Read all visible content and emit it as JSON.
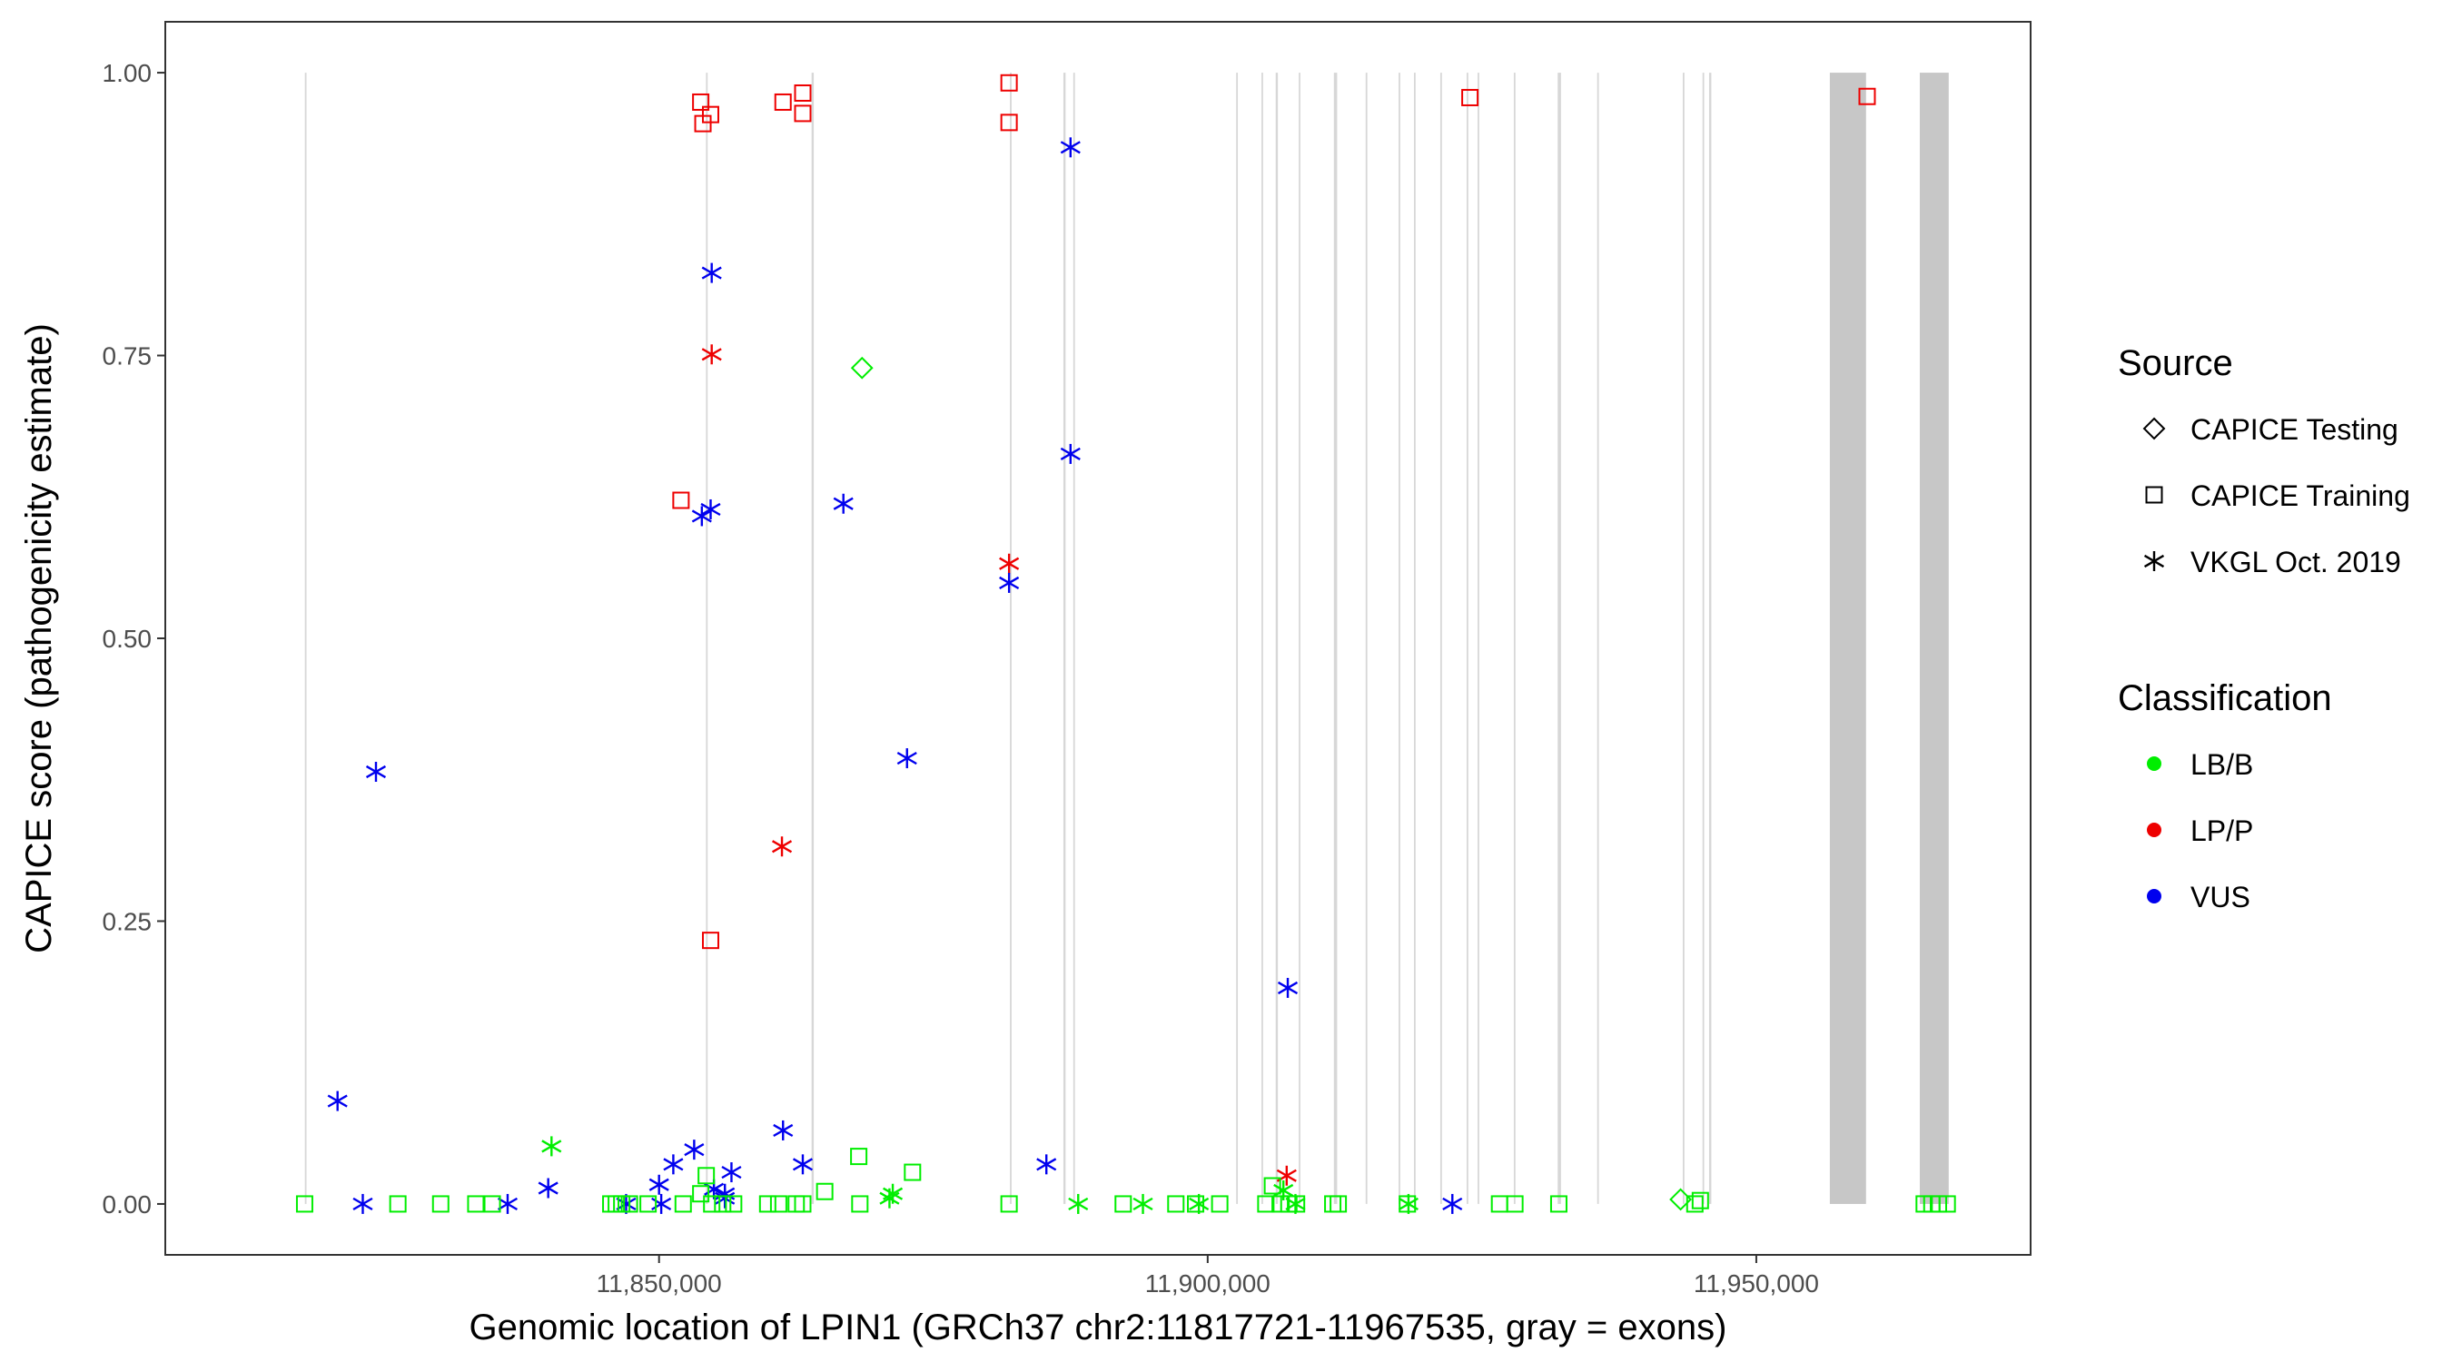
{
  "chart_data": {
    "type": "scatter",
    "title": "",
    "xlabel": "Genomic location of LPIN1 (GRCh37 chr2:11817721-11967535, gray = exons)",
    "ylabel": "CAPICE score (pathogenicity estimate)",
    "xlim": [
      11805000,
      11975000
    ],
    "ylim": [
      -0.045,
      1.045
    ],
    "x_ticks": [
      11850000,
      11900000,
      11950000
    ],
    "x_tick_labels": [
      "11,850,000",
      "11,900,000",
      "11,950,000"
    ],
    "y_ticks": [
      0.0,
      0.25,
      0.5,
      0.75,
      1.0
    ],
    "y_tick_labels": [
      "0.00",
      "0.25",
      "0.50",
      "0.75",
      "1.00"
    ],
    "grid": false,
    "exons": [
      [
        11817721,
        11817800
      ],
      [
        11854280,
        11854400
      ],
      [
        11863900,
        11864100
      ],
      [
        11881980,
        11882100
      ],
      [
        11886850,
        11887050
      ],
      [
        11887750,
        11887850
      ],
      [
        11902600,
        11902700
      ],
      [
        11904900,
        11905000
      ],
      [
        11906200,
        11906400
      ],
      [
        11908300,
        11908400
      ],
      [
        11911500,
        11911800
      ],
      [
        11914400,
        11914500
      ],
      [
        11917400,
        11917500
      ],
      [
        11918800,
        11918900
      ],
      [
        11921200,
        11921300
      ],
      [
        11923600,
        11923700
      ],
      [
        11924600,
        11924700
      ],
      [
        11927900,
        11928000
      ],
      [
        11931900,
        11932200
      ],
      [
        11935500,
        11935600
      ],
      [
        11943300,
        11943400
      ],
      [
        11945100,
        11945200
      ],
      [
        11945700,
        11945900
      ],
      [
        11956700,
        11960000
      ],
      [
        11964900,
        11967535
      ]
    ],
    "legend": {
      "placement": "right",
      "shape_title": "Source",
      "shapes": [
        {
          "label": "CAPICE Testing",
          "shape": "diamond"
        },
        {
          "label": "CAPICE Training",
          "shape": "square"
        },
        {
          "label": "VKGL Oct. 2019",
          "shape": "asterisk"
        }
      ],
      "color_title": "Classification",
      "colors": [
        {
          "label": "LB/B",
          "color": "#00EE00"
        },
        {
          "label": "LP/P",
          "color": "#EE0000"
        },
        {
          "label": "VUS",
          "color": "#0000EE"
        }
      ]
    },
    "series": [
      {
        "source": "CAPICE Training",
        "classification": "LP/P",
        "points": [
          [
            11853800,
            0.974
          ],
          [
            11854000,
            0.955
          ],
          [
            11854700,
            0.963
          ],
          [
            11861300,
            0.974
          ],
          [
            11863100,
            0.982
          ],
          [
            11863100,
            0.964
          ],
          [
            11881900,
            0.991
          ],
          [
            11881900,
            0.956
          ],
          [
            11923900,
            0.978
          ],
          [
            11960100,
            0.979
          ],
          [
            11852000,
            0.622
          ],
          [
            11854700,
            0.233
          ]
        ]
      },
      {
        "source": "VKGL Oct. 2019",
        "classification": "LP/P",
        "points": [
          [
            11854800,
            0.751
          ],
          [
            11861200,
            0.316
          ],
          [
            11881900,
            0.566
          ],
          [
            11907200,
            0.025
          ]
        ]
      },
      {
        "source": "VKGL Oct. 2019",
        "classification": "VUS",
        "points": [
          [
            11854800,
            0.823
          ],
          [
            11887500,
            0.934
          ],
          [
            11853900,
            0.608
          ],
          [
            11854700,
            0.614
          ],
          [
            11866800,
            0.619
          ],
          [
            11887500,
            0.663
          ],
          [
            11881900,
            0.549
          ],
          [
            11872600,
            0.394
          ],
          [
            11824200,
            0.382
          ],
          [
            11820700,
            0.091
          ],
          [
            11907300,
            0.191
          ],
          [
            11861300,
            0.065
          ],
          [
            11863100,
            0.035
          ],
          [
            11885300,
            0.035
          ],
          [
            11839900,
            0.014
          ],
          [
            11850000,
            0.017
          ],
          [
            11851300,
            0.035
          ],
          [
            11853200,
            0.048
          ],
          [
            11855000,
            0.013
          ],
          [
            11856000,
            0.009
          ],
          [
            11856600,
            0.028
          ],
          [
            11823000,
            0.0
          ],
          [
            11836200,
            0.0
          ],
          [
            11847000,
            0.0
          ],
          [
            11850200,
            0.0
          ],
          [
            11856000,
            0.005
          ],
          [
            11922300,
            0.0
          ]
        ]
      },
      {
        "source": "VKGL Oct. 2019",
        "classification": "LB/B",
        "points": [
          [
            11840200,
            0.051
          ],
          [
            11871000,
            0.005
          ],
          [
            11871300,
            0.009
          ],
          [
            11888200,
            0.0
          ],
          [
            11894100,
            0.0
          ],
          [
            11906900,
            0.012
          ],
          [
            11908000,
            0.0
          ],
          [
            11918300,
            0.0
          ],
          [
            11899200,
            0.0
          ]
        ]
      },
      {
        "source": "CAPICE Training",
        "classification": "LB/B",
        "points": [
          [
            11817700,
            0.0
          ],
          [
            11826200,
            0.0
          ],
          [
            11830100,
            0.0
          ],
          [
            11833300,
            0.0
          ],
          [
            11834800,
            0.0
          ],
          [
            11845600,
            0.0
          ],
          [
            11846100,
            0.0
          ],
          [
            11846600,
            0.0
          ],
          [
            11847300,
            0.0
          ],
          [
            11849000,
            0.0
          ],
          [
            11852200,
            0.0
          ],
          [
            11853800,
            0.009
          ],
          [
            11854300,
            0.025
          ],
          [
            11854800,
            0.0
          ],
          [
            11855800,
            0.0
          ],
          [
            11856800,
            0.0
          ],
          [
            11859900,
            0.0
          ],
          [
            11860900,
            0.0
          ],
          [
            11862500,
            0.0
          ],
          [
            11863100,
            0.0
          ],
          [
            11865100,
            0.011
          ],
          [
            11868200,
            0.042
          ],
          [
            11868300,
            0.0
          ],
          [
            11873100,
            0.028
          ],
          [
            11881900,
            0.0
          ],
          [
            11892300,
            0.0
          ],
          [
            11897100,
            0.0
          ],
          [
            11898900,
            0.0
          ],
          [
            11901100,
            0.0
          ],
          [
            11905300,
            0.0
          ],
          [
            11905900,
            0.016
          ],
          [
            11906600,
            0.0
          ],
          [
            11907400,
            0.0
          ],
          [
            11908100,
            0.0
          ],
          [
            11911400,
            0.0
          ],
          [
            11911900,
            0.0
          ],
          [
            11918200,
            0.0
          ],
          [
            11926600,
            0.0
          ],
          [
            11928000,
            0.0
          ],
          [
            11932000,
            0.0
          ],
          [
            11944400,
            0.0
          ],
          [
            11944900,
            0.003
          ],
          [
            11965300,
            0.0
          ],
          [
            11966000,
            0.0
          ],
          [
            11966600,
            0.0
          ],
          [
            11967400,
            0.0
          ]
        ]
      },
      {
        "source": "CAPICE Testing",
        "classification": "LB/B",
        "points": [
          [
            11868500,
            0.739
          ],
          [
            11943100,
            0.004
          ]
        ]
      }
    ]
  }
}
